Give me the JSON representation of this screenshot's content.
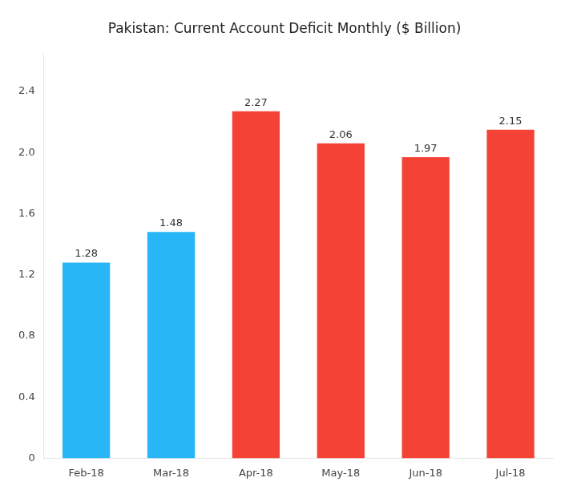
{
  "chart_data": {
    "type": "bar",
    "title": "Pakistan: Current Account Deficit Monthly ($ Billion)",
    "categories": [
      "Feb-18",
      "Mar-18",
      "Apr-18",
      "May-18",
      "Jun-18",
      "Jul-18"
    ],
    "values": [
      1.28,
      1.48,
      2.27,
      2.06,
      1.97,
      2.15
    ],
    "colors": [
      "#29B6F6",
      "#29B6F6",
      "#F44336",
      "#F44336",
      "#F44336",
      "#F44336"
    ],
    "ylim": [
      0,
      2.65
    ],
    "yticks": [
      0,
      0.4,
      0.8,
      1.2,
      1.6,
      {
        "value": 2,
        "label": "2.0"
      },
      2.4
    ],
    "grid": false,
    "data_labels": true
  }
}
